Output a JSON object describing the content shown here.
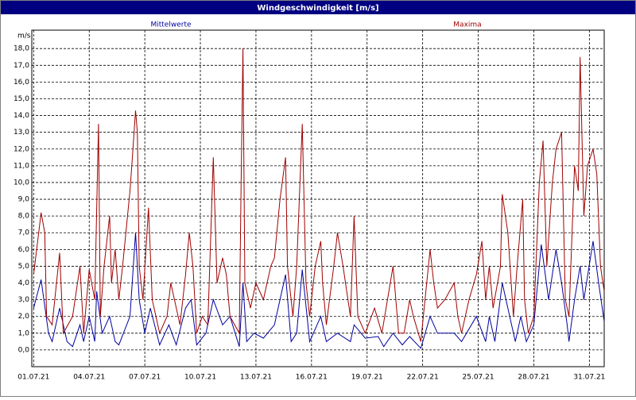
{
  "chart_data": {
    "type": "line",
    "title": "Windgeschwindigkeit [m/s]",
    "y_label": "m/s",
    "xlim": [
      -0.1,
      30.8
    ],
    "ylim": [
      -1,
      19.1
    ],
    "grid": true,
    "xticks": [
      {
        "value": 0,
        "label": "01.07.21"
      },
      {
        "value": 3,
        "label": "04.07.21"
      },
      {
        "value": 6,
        "label": "07.07.21"
      },
      {
        "value": 9,
        "label": "10.07.21"
      },
      {
        "value": 12,
        "label": "13.07.21"
      },
      {
        "value": 15,
        "label": "16.07.21"
      },
      {
        "value": 18,
        "label": "19.07.21"
      },
      {
        "value": 21,
        "label": "22.07.21"
      },
      {
        "value": 24,
        "label": "25.07.21"
      },
      {
        "value": 27,
        "label": "28.07.21"
      },
      {
        "value": 30,
        "label": "31.07.21"
      }
    ],
    "yticks": [
      {
        "value": 0,
        "label": "0,0"
      },
      {
        "value": 1,
        "label": "1,0"
      },
      {
        "value": 2,
        "label": "2,0"
      },
      {
        "value": 3,
        "label": "3,0"
      },
      {
        "value": 4,
        "label": "4,0"
      },
      {
        "value": 5,
        "label": "5,0"
      },
      {
        "value": 6,
        "label": "6,0"
      },
      {
        "value": 7,
        "label": "7,0"
      },
      {
        "value": 8,
        "label": "8,0"
      },
      {
        "value": 9,
        "label": "9,0"
      },
      {
        "value": 10,
        "label": "10,0"
      },
      {
        "value": 11,
        "label": "11,0"
      },
      {
        "value": 12,
        "label": "12,0"
      },
      {
        "value": 13,
        "label": "13,0"
      },
      {
        "value": 14,
        "label": "14,0"
      },
      {
        "value": 15,
        "label": "15,0"
      },
      {
        "value": 16,
        "label": "16,0"
      },
      {
        "value": 17,
        "label": "17,0"
      },
      {
        "value": 18,
        "label": "18,0"
      }
    ],
    "series": [
      {
        "name": "Mittelwerte",
        "color": "#0000a0",
        "x": [
          0,
          0.4,
          0.8,
          1.0,
          1.4,
          1.8,
          2.1,
          2.5,
          2.7,
          3.0,
          3.3,
          3.4,
          3.7,
          4.1,
          4.4,
          4.6,
          5.2,
          5.5,
          5.7,
          6.0,
          6.3,
          6.8,
          7.3,
          7.7,
          8.2,
          8.5,
          8.8,
          9.3,
          9.7,
          10.2,
          10.6,
          11.1,
          11.3,
          11.5,
          11.9,
          12.4,
          13.0,
          13.6,
          13.9,
          14.2,
          14.5,
          14.9,
          15.5,
          15.8,
          16.4,
          17.1,
          17.3,
          17.9,
          18.6,
          18.9,
          19.4,
          19.9,
          20.3,
          20.9,
          21.4,
          21.8,
          22.7,
          23.1,
          23.9,
          24.4,
          24.6,
          24.9,
          25.3,
          25.6,
          26.0,
          26.3,
          26.6,
          27.0,
          27.4,
          27.8,
          28.2,
          28.5,
          28.8,
          28.9,
          29.2,
          29.5,
          29.7,
          30.2,
          30.5,
          30.8
        ],
        "values": [
          2.5,
          4.2,
          1,
          0.5,
          2.5,
          0.5,
          0.2,
          1.5,
          0.5,
          2,
          0.5,
          3.5,
          1,
          2,
          0.5,
          0.3,
          2,
          7,
          3,
          1,
          2.5,
          0.3,
          1.5,
          0.3,
          2.5,
          3,
          0.3,
          1,
          3,
          1.5,
          2,
          0.2,
          4,
          0.5,
          1,
          0.7,
          1.5,
          4.5,
          0.5,
          1,
          4.8,
          0.5,
          2,
          0.5,
          1,
          0.5,
          1.5,
          0.7,
          0.8,
          0.2,
          1,
          0.3,
          0.8,
          0.1,
          2,
          1,
          1,
          0.5,
          2,
          0.5,
          2,
          0.5,
          4,
          2.5,
          0.5,
          2,
          0.5,
          1.5,
          6.3,
          3,
          6,
          4,
          1.5,
          0.5,
          3,
          5,
          3,
          6.5,
          4,
          1.7
        ]
      },
      {
        "name": "Maxima",
        "color": "#a00000",
        "x": [
          0,
          0.4,
          0.6,
          0.7,
          1.0,
          1.4,
          1.6,
          2.1,
          2.5,
          2.7,
          3.0,
          3.3,
          3.5,
          3.6,
          3.8,
          4.1,
          4.2,
          4.4,
          4.6,
          4.8,
          5.2,
          5.3,
          5.5,
          5.6,
          5.7,
          5.9,
          6.2,
          6.4,
          6.8,
          7.2,
          7.4,
          7.9,
          8.2,
          8.4,
          8.6,
          8.8,
          9.1,
          9.4,
          9.7,
          9.9,
          10.2,
          10.4,
          10.6,
          11.1,
          11.2,
          11.3,
          11.4,
          11.7,
          12.0,
          12.4,
          12.8,
          13.0,
          13.3,
          13.6,
          13.7,
          14.0,
          14.2,
          14.5,
          14.7,
          14.9,
          15.2,
          15.5,
          15.6,
          15.8,
          16.2,
          16.4,
          16.7,
          17.1,
          17.3,
          17.5,
          17.9,
          18.4,
          18.8,
          19.4,
          19.7,
          20.0,
          20.3,
          20.5,
          20.9,
          21.4,
          21.6,
          21.8,
          22.2,
          22.7,
          22.9,
          23.1,
          23.5,
          23.9,
          24.2,
          24.4,
          24.6,
          24.8,
          25.2,
          25.3,
          25.6,
          25.9,
          26.1,
          26.4,
          26.5,
          26.7,
          27.0,
          27.3,
          27.5,
          27.7,
          28.0,
          28.2,
          28.5,
          28.7,
          28.9,
          29.2,
          29.4,
          29.5,
          29.7,
          29.9,
          30.2,
          30.4,
          30.6,
          30.8
        ],
        "values": [
          4.5,
          8.2,
          7,
          2,
          1.5,
          5.8,
          1,
          2,
          5,
          1,
          4.8,
          3,
          13.5,
          2,
          5,
          8,
          4,
          6,
          3,
          5,
          9.5,
          11,
          14.3,
          13,
          5,
          3,
          8.5,
          3,
          1,
          2,
          4,
          1.5,
          4.5,
          7,
          5,
          1,
          2,
          1.5,
          11.5,
          4,
          5.5,
          4.5,
          2,
          1,
          10,
          18,
          4,
          2.5,
          4,
          3,
          5,
          5.5,
          9,
          11.5,
          5,
          2,
          5,
          13.5,
          4,
          2,
          5,
          6.5,
          4,
          1.5,
          5,
          7,
          5,
          2,
          8,
          2,
          1,
          2.5,
          1,
          5,
          1,
          1,
          3,
          2,
          0.5,
          6,
          4,
          2.5,
          3,
          4,
          2,
          1,
          3,
          4.5,
          6.5,
          3,
          5,
          2.5,
          5,
          9.3,
          7,
          2,
          5,
          9,
          3,
          1,
          2,
          10,
          12.5,
          5,
          10,
          12,
          13,
          3,
          2,
          11,
          9.5,
          17.5,
          8,
          11,
          12,
          10.5,
          5,
          3.5
        ]
      }
    ]
  }
}
